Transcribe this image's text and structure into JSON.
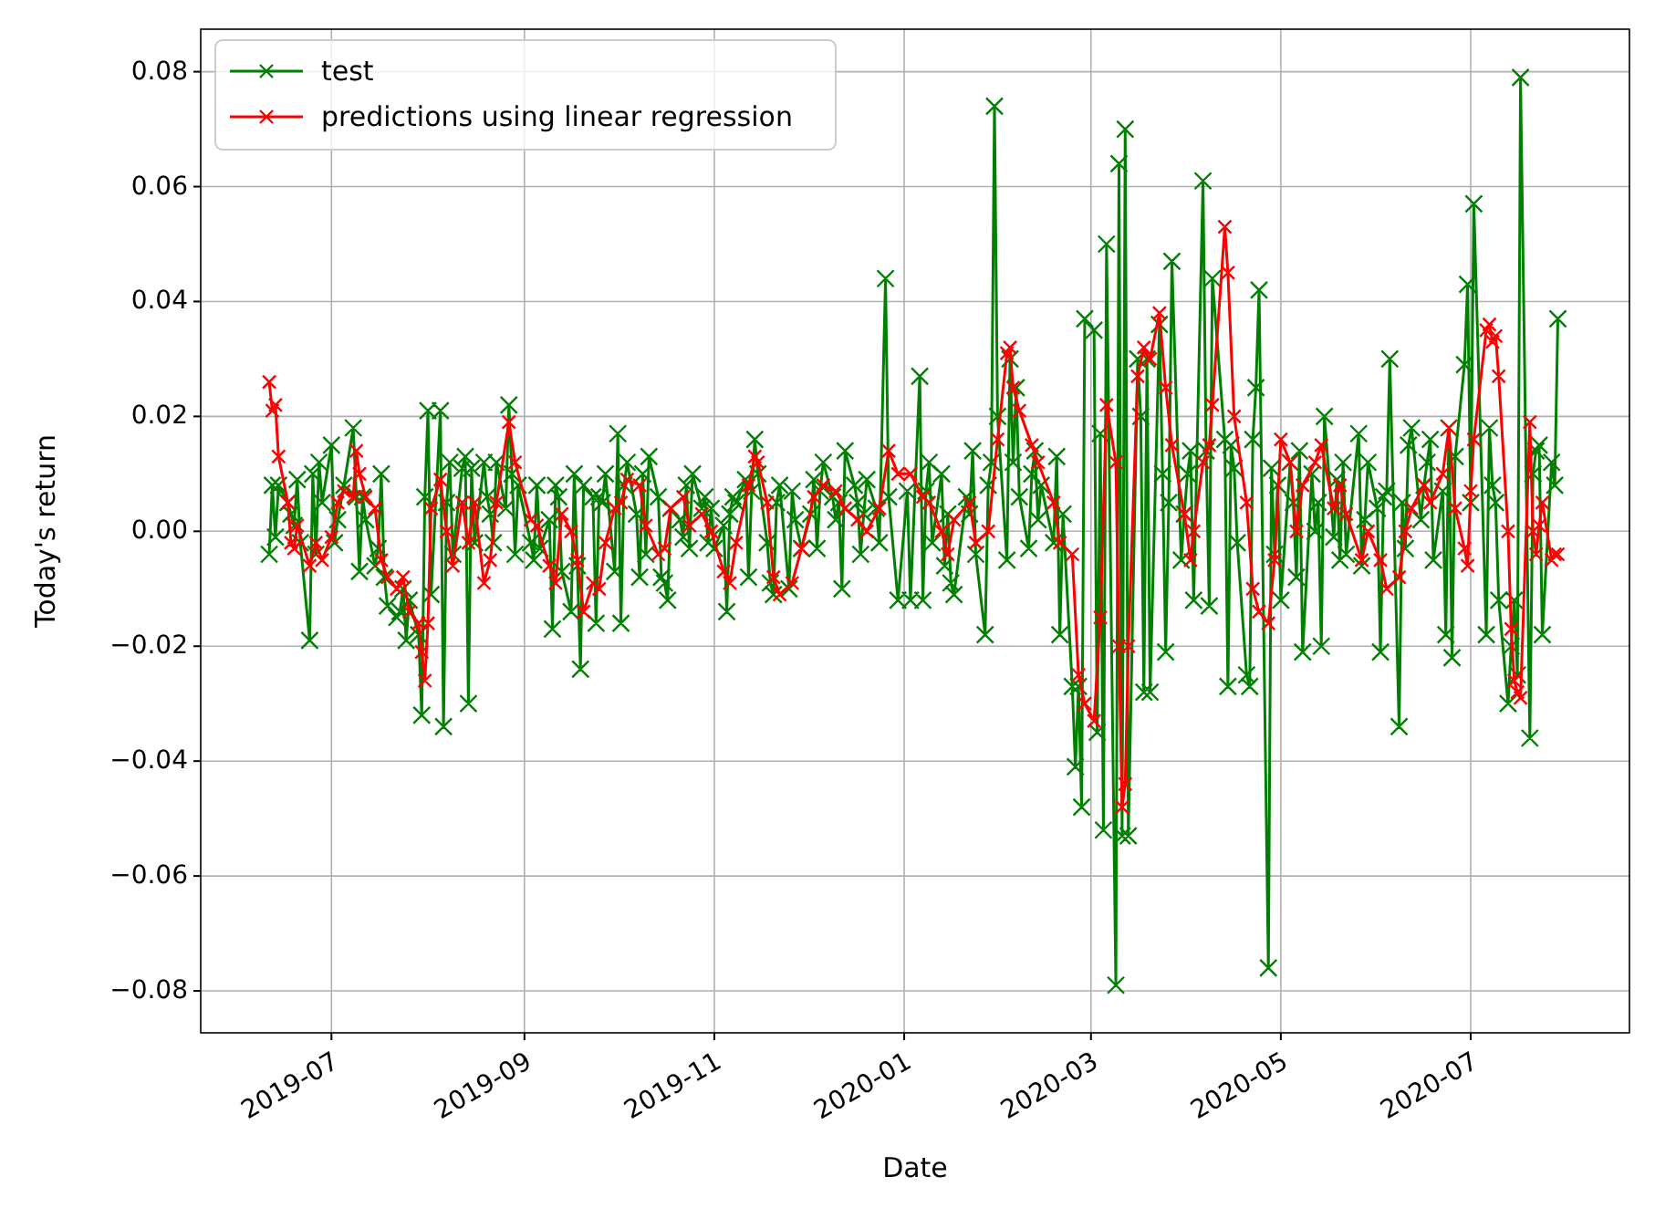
{
  "chart_data": {
    "type": "line",
    "xlabel": "Date",
    "ylabel": "Today's return",
    "xlim": [
      "2019-05-20",
      "2020-08-21"
    ],
    "ylim": [
      -0.0873,
      0.0874
    ],
    "xticks": [
      {
        "value": "2019-07-01",
        "label": "2019-07"
      },
      {
        "value": "2019-09-01",
        "label": "2019-09"
      },
      {
        "value": "2019-11-01",
        "label": "2019-11"
      },
      {
        "value": "2020-01-01",
        "label": "2020-01"
      },
      {
        "value": "2020-03-01",
        "label": "2020-03"
      },
      {
        "value": "2020-05-01",
        "label": "2020-05"
      },
      {
        "value": "2020-07-01",
        "label": "2020-07"
      }
    ],
    "yticks": [
      {
        "value": -0.08,
        "label": "−0.08"
      },
      {
        "value": -0.06,
        "label": "−0.06"
      },
      {
        "value": -0.04,
        "label": "−0.04"
      },
      {
        "value": -0.02,
        "label": "−0.02"
      },
      {
        "value": 0,
        "label": "0.00"
      },
      {
        "value": 0.02,
        "label": "0.02"
      },
      {
        "value": 0.04,
        "label": "0.04"
      },
      {
        "value": 0.06,
        "label": "0.06"
      },
      {
        "value": 0.08,
        "label": "0.08"
      }
    ],
    "grid": true,
    "legend": "top left",
    "marker": "cross",
    "line_style": "solid",
    "series": [
      {
        "name": "test",
        "color": "#008000",
        "x": [
          "2019-06-11",
          "2019-06-12",
          "2019-06-13",
          "2019-06-14",
          "2019-06-17",
          "2019-06-18",
          "2019-06-19",
          "2019-06-20",
          "2019-06-21",
          "2019-06-24",
          "2019-06-25",
          "2019-06-26",
          "2019-06-27",
          "2019-06-28",
          "2019-07-01",
          "2019-07-02",
          "2019-07-03",
          "2019-07-05",
          "2019-07-08",
          "2019-07-09",
          "2019-07-10",
          "2019-07-11",
          "2019-07-12",
          "2019-07-15",
          "2019-07-16",
          "2019-07-17",
          "2019-07-18",
          "2019-07-19",
          "2019-07-22",
          "2019-07-23",
          "2019-07-24",
          "2019-07-25",
          "2019-07-26",
          "2019-07-29",
          "2019-07-30",
          "2019-07-31",
          "2019-08-01",
          "2019-08-02",
          "2019-08-05",
          "2019-08-06",
          "2019-08-07",
          "2019-08-08",
          "2019-08-09",
          "2019-08-12",
          "2019-08-13",
          "2019-08-14",
          "2019-08-15",
          "2019-08-16",
          "2019-08-19",
          "2019-08-20",
          "2019-08-21",
          "2019-08-22",
          "2019-08-23",
          "2019-08-26",
          "2019-08-27",
          "2019-08-28",
          "2019-08-29",
          "2019-08-30",
          "2019-09-03",
          "2019-09-04",
          "2019-09-05",
          "2019-09-06",
          "2019-09-09",
          "2019-09-10",
          "2019-09-11",
          "2019-09-12",
          "2019-09-13",
          "2019-09-16",
          "2019-09-17",
          "2019-09-18",
          "2019-09-19",
          "2019-09-20",
          "2019-09-23",
          "2019-09-24",
          "2019-09-25",
          "2019-09-26",
          "2019-09-27",
          "2019-09-30",
          "2019-10-01",
          "2019-10-02",
          "2019-10-03",
          "2019-10-04",
          "2019-10-07",
          "2019-10-08",
          "2019-10-09",
          "2019-10-10",
          "2019-10-11",
          "2019-10-14",
          "2019-10-15",
          "2019-10-16",
          "2019-10-17",
          "2019-10-18",
          "2019-10-21",
          "2019-10-22",
          "2019-10-23",
          "2019-10-24",
          "2019-10-25",
          "2019-10-28",
          "2019-10-29",
          "2019-10-30",
          "2019-10-31",
          "2019-11-01",
          "2019-11-04",
          "2019-11-05",
          "2019-11-06",
          "2019-11-07",
          "2019-11-08",
          "2019-11-11",
          "2019-11-12",
          "2019-11-13",
          "2019-11-14",
          "2019-11-15",
          "2019-11-18",
          "2019-11-19",
          "2019-11-20",
          "2019-11-21",
          "2019-11-22",
          "2019-11-25",
          "2019-11-26",
          "2019-11-27",
          "2019-11-29",
          "2019-12-02",
          "2019-12-03",
          "2019-12-04",
          "2019-12-05",
          "2019-12-06",
          "2019-12-09",
          "2019-12-10",
          "2019-12-11",
          "2019-12-12",
          "2019-12-13",
          "2019-12-16",
          "2019-12-17",
          "2019-12-18",
          "2019-12-19",
          "2019-12-20",
          "2019-12-23",
          "2019-12-24",
          "2019-12-26",
          "2019-12-27",
          "2019-12-30",
          "2020-01-02",
          "2020-01-03",
          "2020-01-06",
          "2020-01-07",
          "2020-01-08",
          "2020-01-09",
          "2020-01-10",
          "2020-01-13",
          "2020-01-14",
          "2020-01-15",
          "2020-01-16",
          "2020-01-17",
          "2020-01-21",
          "2020-01-22",
          "2020-01-23",
          "2020-01-24",
          "2020-01-27",
          "2020-01-28",
          "2020-01-29",
          "2020-01-30",
          "2020-01-31",
          "2020-02-03",
          "2020-02-04",
          "2020-02-05",
          "2020-02-06",
          "2020-02-07",
          "2020-02-10",
          "2020-02-11",
          "2020-02-12",
          "2020-02-13",
          "2020-02-14",
          "2020-02-18",
          "2020-02-19",
          "2020-02-20",
          "2020-02-21",
          "2020-02-24",
          "2020-02-25",
          "2020-02-26",
          "2020-02-27",
          "2020-02-28",
          "2020-03-02",
          "2020-03-03",
          "2020-03-04",
          "2020-03-05",
          "2020-03-06",
          "2020-03-09",
          "2020-03-10",
          "2020-03-11",
          "2020-03-12",
          "2020-03-13",
          "2020-03-16",
          "2020-03-17",
          "2020-03-18",
          "2020-03-19",
          "2020-03-20",
          "2020-03-23",
          "2020-03-24",
          "2020-03-25",
          "2020-03-26",
          "2020-03-27",
          "2020-03-30",
          "2020-03-31",
          "2020-04-01",
          "2020-04-02",
          "2020-04-03",
          "2020-04-06",
          "2020-04-07",
          "2020-04-08",
          "2020-04-09",
          "2020-04-13",
          "2020-04-14",
          "2020-04-15",
          "2020-04-16",
          "2020-04-17",
          "2020-04-20",
          "2020-04-21",
          "2020-04-22",
          "2020-04-23",
          "2020-04-24",
          "2020-04-27",
          "2020-04-28",
          "2020-04-29",
          "2020-04-30",
          "2020-05-01",
          "2020-05-04",
          "2020-05-05",
          "2020-05-06",
          "2020-05-07",
          "2020-05-08",
          "2020-05-11",
          "2020-05-12",
          "2020-05-13",
          "2020-05-14",
          "2020-05-15",
          "2020-05-18",
          "2020-05-19",
          "2020-05-20",
          "2020-05-21",
          "2020-05-22",
          "2020-05-26",
          "2020-05-27",
          "2020-05-28",
          "2020-05-29",
          "2020-06-01",
          "2020-06-02",
          "2020-06-03",
          "2020-06-04",
          "2020-06-05",
          "2020-06-08",
          "2020-06-09",
          "2020-06-10",
          "2020-06-11",
          "2020-06-12",
          "2020-06-15",
          "2020-06-16",
          "2020-06-17",
          "2020-06-18",
          "2020-06-19",
          "2020-06-22",
          "2020-06-23",
          "2020-06-24",
          "2020-06-25",
          "2020-06-26",
          "2020-06-29",
          "2020-06-30",
          "2020-07-01",
          "2020-07-02",
          "2020-07-06",
          "2020-07-07",
          "2020-07-08",
          "2020-07-09",
          "2020-07-10",
          "2020-07-13",
          "2020-07-14",
          "2020-07-15",
          "2020-07-16",
          "2020-07-17",
          "2020-07-20",
          "2020-07-21",
          "2020-07-22",
          "2020-07-23",
          "2020-07-24",
          "2020-07-27",
          "2020-07-28",
          "2020-07-29"
        ],
        "values": [
          -0.004,
          0.008,
          -0.001,
          0.008,
          0.005,
          0.003,
          0.001,
          0.009,
          -0.002,
          -0.019,
          0.01,
          -0.004,
          0.012,
          0.005,
          0.015,
          -0.002,
          0.002,
          0.008,
          0.018,
          0.006,
          -0.007,
          0.006,
          0.002,
          -0.006,
          -0.003,
          0.01,
          -0.008,
          -0.013,
          -0.015,
          -0.014,
          -0.01,
          -0.019,
          -0.012,
          -0.018,
          -0.032,
          0.006,
          0.021,
          -0.011,
          0.021,
          -0.034,
          0.005,
          0.012,
          -0.004,
          0.011,
          0.013,
          -0.03,
          0.011,
          -0.002,
          0.012,
          0.006,
          0.003,
          -0.002,
          0.012,
          0.004,
          0.022,
          0.01,
          -0.004,
          0.008,
          -0.002,
          -0.005,
          0.008,
          -0.003,
          0.002,
          -0.017,
          0.008,
          0.006,
          -0.007,
          -0.014,
          0.01,
          -0.006,
          -0.024,
          0.008,
          0.006,
          -0.016,
          0.006,
          0.005,
          0.01,
          -0.007,
          0.017,
          -0.016,
          0.008,
          0.012,
          0.003,
          -0.008,
          0.01,
          -0.004,
          0.013,
          0.006,
          -0.008,
          -0.009,
          -0.012,
          0.004,
          0.002,
          -0.001,
          0.008,
          -0.003,
          0.01,
          0.004,
          0.006,
          -0.002,
          0.004,
          -0.003,
          0.001,
          -0.014,
          0.003,
          0.006,
          0.005,
          0.009,
          -0.008,
          0.007,
          0.016,
          0.01,
          -0.002,
          -0.009,
          -0.011,
          0.005,
          0.008,
          -0.01,
          0.007,
          0.002,
          -0.003,
          0.003,
          0.009,
          -0.003,
          0.007,
          0.012,
          0.006,
          0.002,
          0.005,
          -0.01,
          0.014,
          0.008,
          0.005,
          -0.004,
          0.003,
          0.009,
          0.004,
          -0.002,
          0.044,
          0.006,
          -0.012,
          0.007,
          -0.012,
          0.027,
          -0.012,
          0.007,
          0.012,
          -0.002,
          0.01,
          -0.006,
          0.003,
          -0.009,
          -0.011,
          0.006,
          0.003,
          0.014,
          -0.004,
          -0.018,
          0.008,
          0.012,
          0.074,
          0.02,
          -0.005,
          0.03,
          0.012,
          0.025,
          0.006,
          -0.003,
          0.01,
          0.014,
          0.002,
          0.008,
          -0.002,
          0.013,
          -0.018,
          0.003,
          -0.027,
          -0.041,
          -0.027,
          -0.048,
          0.037,
          0.035,
          -0.035,
          0.017,
          -0.052,
          0.05,
          -0.079,
          0.064,
          -0.053,
          0.07,
          -0.053,
          0.03,
          0.02,
          -0.028,
          0.03,
          -0.028,
          0.036,
          0.01,
          -0.021,
          0.005,
          0.047,
          -0.005,
          0.003,
          0.01,
          0.014,
          -0.012,
          0.061,
          0.014,
          -0.013,
          0.044,
          0.016,
          -0.027,
          0.015,
          0.011,
          -0.002,
          -0.025,
          -0.027,
          0.016,
          0.025,
          0.042,
          -0.076,
          0.011,
          -0.004,
          0.008,
          -0.012,
          0.012,
          0.005,
          -0.008,
          0.014,
          -0.021,
          0.01,
          0.0,
          0.005,
          -0.02,
          0.02,
          -0.001,
          0.009,
          -0.005,
          0.012,
          -0.004,
          0.017,
          -0.006,
          0.002,
          0.012,
          0.004,
          -0.021,
          0.006,
          0.007,
          0.03,
          -0.034,
          0.005,
          -0.003,
          0.015,
          0.018,
          0.002,
          0.008,
          0.012,
          0.016,
          -0.005,
          0.007,
          -0.018,
          0.018,
          -0.022,
          0.013,
          0.029,
          0.043,
          0.005,
          0.057,
          -0.018,
          0.018,
          0.008,
          0.005,
          -0.012,
          -0.03,
          -0.02,
          -0.012,
          -0.025,
          0.079,
          -0.036,
          0.01,
          0.014,
          0.015,
          -0.018,
          0.012,
          0.008,
          0.037
        ]
      },
      {
        "name": "predictions using linear regression",
        "color": "#ff0000",
        "x": [
          "2019-06-11",
          "2019-06-12",
          "2019-06-13",
          "2019-06-14",
          "2019-06-17",
          "2019-06-18",
          "2019-06-19",
          "2019-06-20",
          "2019-06-24",
          "2019-06-26",
          "2019-06-28",
          "2019-07-01",
          "2019-07-03",
          "2019-07-05",
          "2019-07-08",
          "2019-07-09",
          "2019-07-10",
          "2019-07-12",
          "2019-07-15",
          "2019-07-17",
          "2019-07-19",
          "2019-07-22",
          "2019-07-24",
          "2019-07-26",
          "2019-07-29",
          "2019-07-30",
          "2019-07-31",
          "2019-08-01",
          "2019-08-02",
          "2019-08-05",
          "2019-08-07",
          "2019-08-09",
          "2019-08-12",
          "2019-08-14",
          "2019-08-16",
          "2019-08-19",
          "2019-08-21",
          "2019-08-23",
          "2019-08-27",
          "2019-08-29",
          "2019-09-03",
          "2019-09-05",
          "2019-09-09",
          "2019-09-11",
          "2019-09-13",
          "2019-09-16",
          "2019-09-18",
          "2019-09-20",
          "2019-09-23",
          "2019-09-25",
          "2019-09-27",
          "2019-09-30",
          "2019-10-02",
          "2019-10-04",
          "2019-10-08",
          "2019-10-10",
          "2019-10-14",
          "2019-10-16",
          "2019-10-18",
          "2019-10-22",
          "2019-10-24",
          "2019-10-28",
          "2019-10-31",
          "2019-11-04",
          "2019-11-06",
          "2019-11-08",
          "2019-11-12",
          "2019-11-14",
          "2019-11-15",
          "2019-11-18",
          "2019-11-20",
          "2019-11-22",
          "2019-11-26",
          "2019-11-29",
          "2019-12-03",
          "2019-12-06",
          "2019-12-10",
          "2019-12-13",
          "2019-12-17",
          "2019-12-20",
          "2019-12-24",
          "2019-12-27",
          "2019-12-30",
          "2020-01-03",
          "2020-01-07",
          "2020-01-09",
          "2020-01-13",
          "2020-01-15",
          "2020-01-17",
          "2020-01-22",
          "2020-01-24",
          "2020-01-28",
          "2020-01-31",
          "2020-02-03",
          "2020-02-04",
          "2020-02-05",
          "2020-02-07",
          "2020-02-11",
          "2020-02-13",
          "2020-02-18",
          "2020-02-20",
          "2020-02-24",
          "2020-02-26",
          "2020-02-28",
          "2020-03-02",
          "2020-03-04",
          "2020-03-06",
          "2020-03-09",
          "2020-03-10",
          "2020-03-11",
          "2020-03-12",
          "2020-03-13",
          "2020-03-16",
          "2020-03-18",
          "2020-03-20",
          "2020-03-23",
          "2020-03-25",
          "2020-03-27",
          "2020-03-31",
          "2020-04-02",
          "2020-04-03",
          "2020-04-06",
          "2020-04-08",
          "2020-04-09",
          "2020-04-13",
          "2020-04-14",
          "2020-04-16",
          "2020-04-20",
          "2020-04-22",
          "2020-04-24",
          "2020-04-27",
          "2020-04-29",
          "2020-05-01",
          "2020-05-04",
          "2020-05-06",
          "2020-05-08",
          "2020-05-12",
          "2020-05-14",
          "2020-05-18",
          "2020-05-20",
          "2020-05-22",
          "2020-05-27",
          "2020-05-29",
          "2020-06-02",
          "2020-06-04",
          "2020-06-08",
          "2020-06-10",
          "2020-06-12",
          "2020-06-16",
          "2020-06-18",
          "2020-06-22",
          "2020-06-24",
          "2020-06-26",
          "2020-06-29",
          "2020-06-30",
          "2020-07-01",
          "2020-07-02",
          "2020-07-06",
          "2020-07-07",
          "2020-07-08",
          "2020-07-09",
          "2020-07-10",
          "2020-07-13",
          "2020-07-14",
          "2020-07-15",
          "2020-07-16",
          "2020-07-17",
          "2020-07-20",
          "2020-07-21",
          "2020-07-22",
          "2020-07-23",
          "2020-07-24",
          "2020-07-27",
          "2020-07-28",
          "2020-07-29"
        ],
        "values": [
          0.026,
          0.021,
          0.022,
          0.013,
          0.005,
          -0.002,
          -0.003,
          0.001,
          -0.006,
          -0.002,
          -0.005,
          -0.001,
          0.005,
          0.007,
          0.006,
          0.014,
          0.01,
          0.006,
          0.004,
          -0.005,
          -0.008,
          -0.01,
          -0.008,
          -0.014,
          -0.016,
          -0.021,
          -0.026,
          -0.016,
          0.004,
          0.009,
          0.0,
          -0.006,
          0.005,
          -0.002,
          0.005,
          -0.009,
          -0.005,
          0.005,
          0.019,
          0.012,
          0.002,
          0.001,
          -0.006,
          -0.009,
          0.003,
          0.0,
          -0.005,
          -0.014,
          -0.009,
          -0.01,
          -0.002,
          0.004,
          0.005,
          0.009,
          0.008,
          0.001,
          -0.004,
          -0.003,
          0.004,
          0.006,
          0.001,
          0.003,
          0.0,
          -0.007,
          -0.009,
          -0.002,
          0.008,
          0.013,
          0.012,
          0.005,
          -0.008,
          -0.011,
          -0.009,
          -0.003,
          0.006,
          0.008,
          0.007,
          0.004,
          0.002,
          0.0,
          0.004,
          0.014,
          0.01,
          0.01,
          0.006,
          0.005,
          0.0,
          -0.004,
          0.002,
          0.005,
          -0.002,
          0.0,
          0.016,
          0.031,
          0.032,
          0.025,
          0.021,
          0.015,
          0.012,
          0.005,
          -0.002,
          -0.004,
          -0.025,
          -0.03,
          -0.033,
          -0.015,
          0.022,
          0.012,
          -0.02,
          -0.048,
          -0.044,
          -0.02,
          0.027,
          0.032,
          0.03,
          0.038,
          0.025,
          0.015,
          0.003,
          -0.005,
          0.0,
          0.012,
          0.015,
          0.022,
          0.053,
          0.045,
          0.02,
          0.005,
          -0.01,
          -0.014,
          -0.016,
          -0.005,
          0.016,
          0.012,
          0.0,
          0.008,
          0.012,
          0.015,
          0.004,
          0.008,
          0.003,
          -0.005,
          0.0,
          -0.005,
          -0.01,
          -0.008,
          0.0,
          0.004,
          0.008,
          0.005,
          0.01,
          0.018,
          0.004,
          -0.003,
          -0.006,
          0.007,
          0.016,
          0.035,
          0.036,
          0.033,
          0.034,
          0.027,
          0.0,
          -0.017,
          -0.026,
          -0.028,
          -0.029,
          0.019,
          0.0,
          -0.004,
          0.001,
          0.005,
          -0.005,
          -0.004,
          -0.004
        ]
      }
    ]
  }
}
